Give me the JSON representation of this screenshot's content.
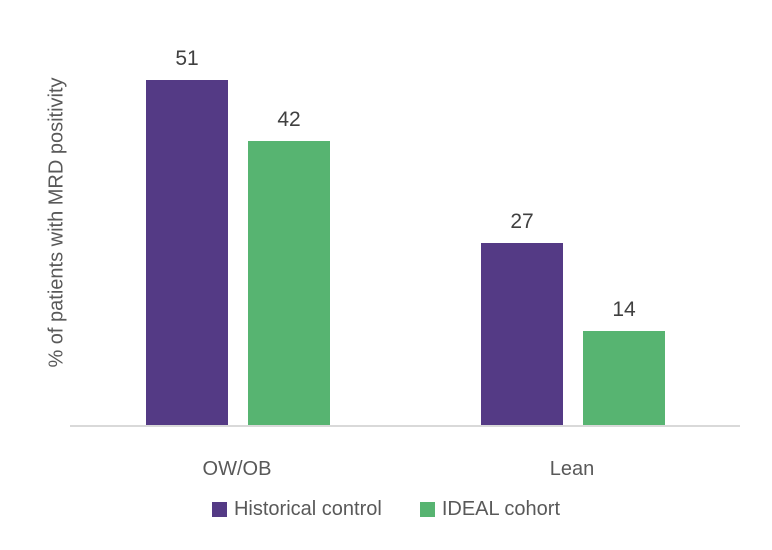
{
  "chart_data": {
    "type": "bar",
    "categories": [
      "OW/OB",
      "Lean"
    ],
    "series": [
      {
        "name": "Historical control",
        "color": "#543a85",
        "values": [
          51,
          27
        ]
      },
      {
        "name": "IDEAL cohort",
        "color": "#57b471",
        "values": [
          42,
          14
        ]
      }
    ],
    "title": "",
    "xlabel": "",
    "ylabel": "% of patients with MRD positivity",
    "ylim": [
      0,
      60
    ],
    "grid": false,
    "y_axis_ticks_visible": false,
    "value_labels": true,
    "legend_position": "bottom",
    "axis_line_color": "#d9d9d9",
    "label_color": "#404040",
    "text_color": "#595959"
  }
}
